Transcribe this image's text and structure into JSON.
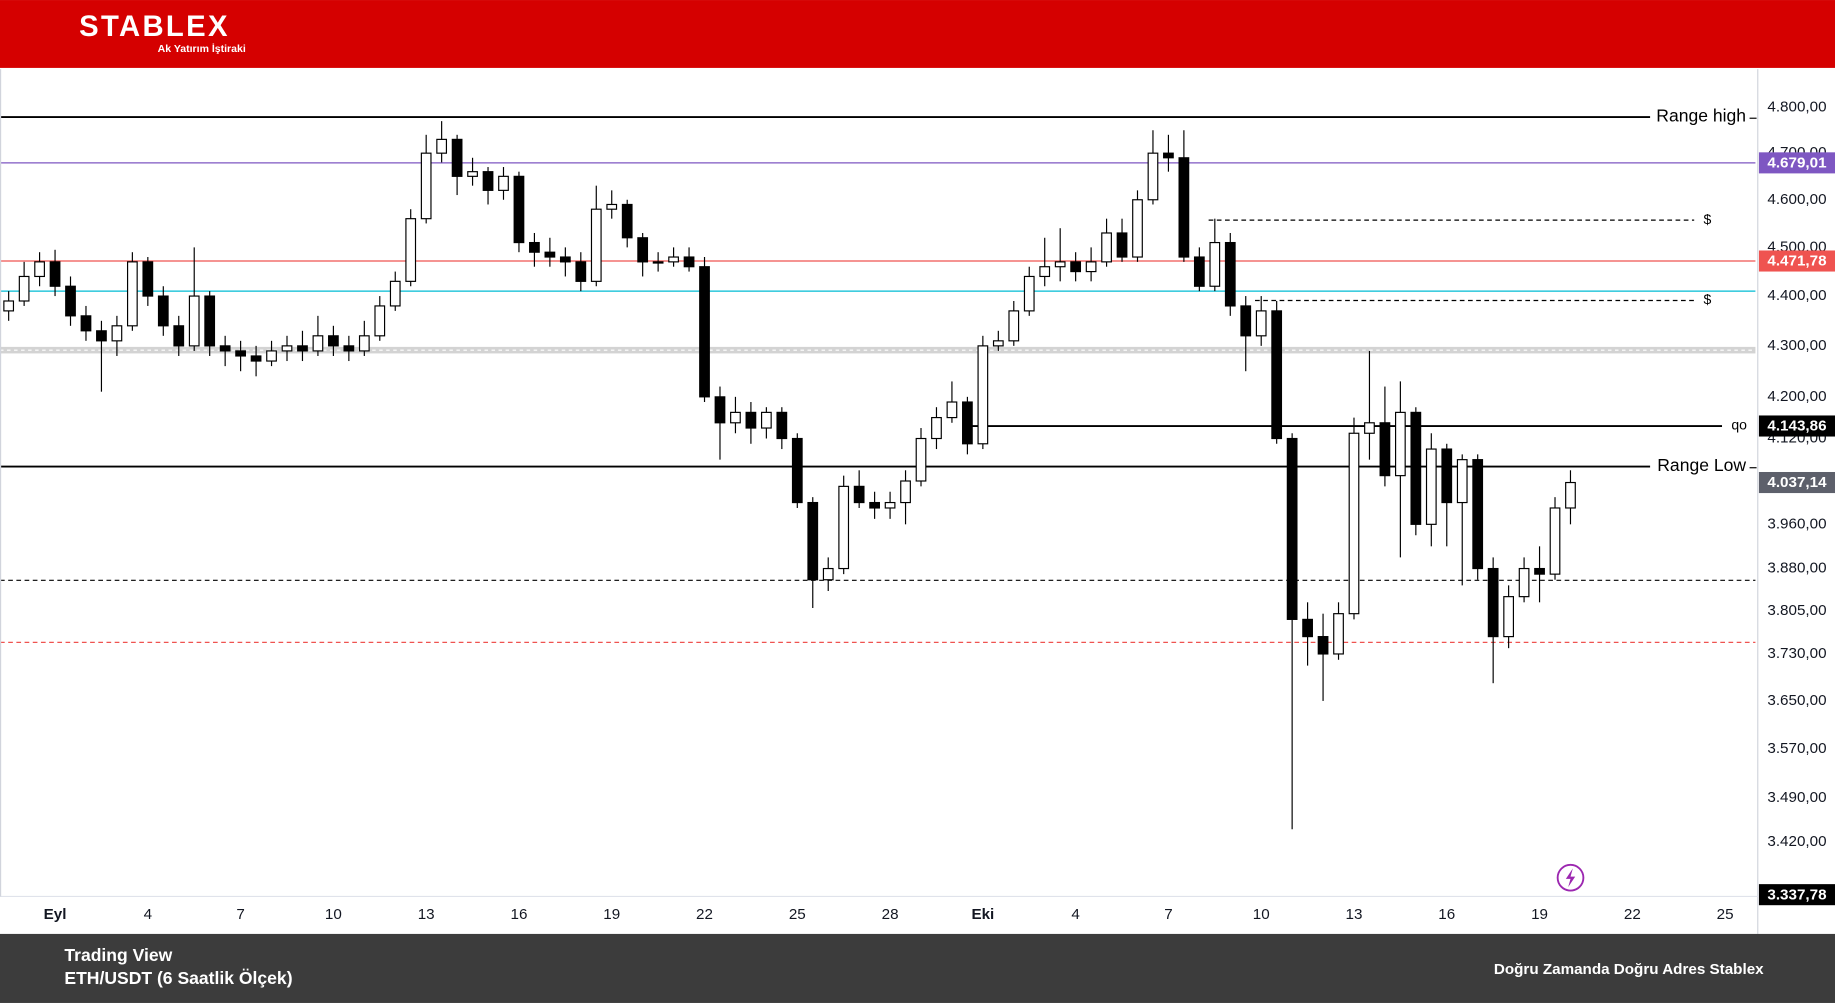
{
  "header": {
    "logo": "STABLEX",
    "tagline": "Ak Yatırım İştiraki"
  },
  "chart_data": {
    "type": "candlestick",
    "xlim": [
      -1.78,
      54.98
    ],
    "xticks": [
      {
        "value": 0,
        "label": "Eyl"
      },
      {
        "value": 3,
        "label": "4"
      },
      {
        "value": 6,
        "label": "7"
      },
      {
        "value": 9,
        "label": "10"
      },
      {
        "value": 12,
        "label": "13"
      },
      {
        "value": 15,
        "label": "16"
      },
      {
        "value": 18,
        "label": "19"
      },
      {
        "value": 21,
        "label": "22"
      },
      {
        "value": 24,
        "label": "25"
      },
      {
        "value": 27,
        "label": "28"
      },
      {
        "value": 30,
        "label": "Eki"
      },
      {
        "value": 33,
        "label": "4"
      },
      {
        "value": 36,
        "label": "7"
      },
      {
        "value": 39,
        "label": "10"
      },
      {
        "value": 42,
        "label": "13"
      },
      {
        "value": 45,
        "label": "16"
      },
      {
        "value": 48,
        "label": "19"
      },
      {
        "value": 51,
        "label": "22"
      },
      {
        "value": 54,
        "label": "25"
      }
    ],
    "ylim": [
      3335,
      4886
    ],
    "log_scale": true,
    "grid": false,
    "yticks": [
      {
        "value": 4800,
        "label": "4.800,00"
      },
      {
        "value": 4700,
        "label": "4.700,00"
      },
      {
        "value": 4600,
        "label": "4.600,00"
      },
      {
        "value": 4500,
        "label": "4.500,00"
      },
      {
        "value": 4400,
        "label": "4.400,00"
      },
      {
        "value": 4300,
        "label": "4.300,00"
      },
      {
        "value": 4200,
        "label": "4.200,00"
      },
      {
        "value": 4120,
        "label": "4.120,00"
      },
      {
        "value": 3960,
        "label": "3.960,00"
      },
      {
        "value": 3880,
        "label": "3.880,00"
      },
      {
        "value": 3805,
        "label": "3.805,00"
      },
      {
        "value": 3730,
        "label": "3.730,00"
      },
      {
        "value": 3650,
        "label": "3.650,00"
      },
      {
        "value": 3570,
        "label": "3.570,00"
      },
      {
        "value": 3490,
        "label": "3.490,00"
      },
      {
        "value": 3420,
        "label": "3.420,00"
      }
    ],
    "up_color": "#ffffff",
    "down_color": "#000000",
    "candles": [
      [
        -1.5,
        4370,
        4410,
        4350,
        4390
      ],
      [
        -1,
        4390,
        4470,
        4380,
        4440
      ],
      [
        -0.5,
        4440,
        4490,
        4420,
        4470
      ],
      [
        0,
        4470,
        4495,
        4400,
        4420
      ],
      [
        0.5,
        4420,
        4440,
        4340,
        4360
      ],
      [
        1,
        4360,
        4380,
        4310,
        4330
      ],
      [
        1.5,
        4330,
        4350,
        4210,
        4310
      ],
      [
        2,
        4310,
        4360,
        4280,
        4340
      ],
      [
        2.5,
        4340,
        4490,
        4330,
        4470
      ],
      [
        3,
        4470,
        4480,
        4380,
        4400
      ],
      [
        3.5,
        4400,
        4420,
        4320,
        4340
      ],
      [
        4,
        4340,
        4360,
        4280,
        4300
      ],
      [
        4.5,
        4300,
        4500,
        4290,
        4400
      ],
      [
        5,
        4400,
        4410,
        4280,
        4300
      ],
      [
        5.5,
        4300,
        4320,
        4260,
        4290
      ],
      [
        6,
        4290,
        4310,
        4250,
        4280
      ],
      [
        6.5,
        4280,
        4300,
        4240,
        4270
      ],
      [
        7,
        4270,
        4310,
        4260,
        4290
      ],
      [
        7.5,
        4290,
        4320,
        4270,
        4300
      ],
      [
        8,
        4300,
        4330,
        4270,
        4290
      ],
      [
        8.5,
        4290,
        4360,
        4280,
        4320
      ],
      [
        9,
        4320,
        4340,
        4280,
        4300
      ],
      [
        9.5,
        4300,
        4320,
        4270,
        4290
      ],
      [
        10,
        4290,
        4350,
        4280,
        4320
      ],
      [
        10.5,
        4320,
        4400,
        4310,
        4380
      ],
      [
        11,
        4380,
        4450,
        4370,
        4430
      ],
      [
        11.5,
        4430,
        4580,
        4420,
        4560
      ],
      [
        12,
        4560,
        4740,
        4550,
        4700
      ],
      [
        12.5,
        4700,
        4770,
        4680,
        4730
      ],
      [
        13,
        4730,
        4740,
        4610,
        4650
      ],
      [
        13.5,
        4650,
        4690,
        4630,
        4660
      ],
      [
        14,
        4660,
        4670,
        4590,
        4620
      ],
      [
        14.5,
        4620,
        4670,
        4600,
        4650
      ],
      [
        15,
        4650,
        4660,
        4490,
        4510
      ],
      [
        15.5,
        4510,
        4530,
        4460,
        4490
      ],
      [
        16,
        4490,
        4520,
        4460,
        4480
      ],
      [
        16.5,
        4480,
        4500,
        4440,
        4470
      ],
      [
        17,
        4470,
        4490,
        4410,
        4430
      ],
      [
        17.5,
        4430,
        4630,
        4420,
        4580
      ],
      [
        18,
        4580,
        4620,
        4560,
        4590
      ],
      [
        18.5,
        4590,
        4600,
        4500,
        4520
      ],
      [
        19,
        4520,
        4530,
        4440,
        4470
      ],
      [
        19.5,
        4470,
        4490,
        4450,
        4470
      ],
      [
        20,
        4470,
        4500,
        4460,
        4480
      ],
      [
        20.5,
        4480,
        4500,
        4450,
        4460
      ],
      [
        21,
        4460,
        4480,
        4190,
        4200
      ],
      [
        21.5,
        4200,
        4220,
        4080,
        4150
      ],
      [
        22,
        4150,
        4200,
        4130,
        4170
      ],
      [
        22.5,
        4170,
        4190,
        4110,
        4140
      ],
      [
        23,
        4140,
        4180,
        4120,
        4170
      ],
      [
        23.5,
        4170,
        4180,
        4100,
        4120
      ],
      [
        24,
        4120,
        4130,
        3990,
        4000
      ],
      [
        24.5,
        4000,
        4010,
        3810,
        3860
      ],
      [
        25,
        3860,
        3900,
        3840,
        3880
      ],
      [
        25.5,
        3880,
        4050,
        3870,
        4030
      ],
      [
        26,
        4030,
        4060,
        3990,
        4000
      ],
      [
        26.5,
        4000,
        4020,
        3970,
        3990
      ],
      [
        27,
        3990,
        4020,
        3970,
        4000
      ],
      [
        27.5,
        4000,
        4060,
        3960,
        4040
      ],
      [
        28,
        4040,
        4140,
        4030,
        4120
      ],
      [
        28.5,
        4120,
        4180,
        4100,
        4160
      ],
      [
        29,
        4160,
        4230,
        4150,
        4190
      ],
      [
        29.5,
        4190,
        4200,
        4090,
        4110
      ],
      [
        30,
        4110,
        4320,
        4100,
        4300
      ],
      [
        30.5,
        4300,
        4330,
        4290,
        4310
      ],
      [
        31,
        4310,
        4390,
        4300,
        4370
      ],
      [
        31.5,
        4370,
        4460,
        4360,
        4440
      ],
      [
        32,
        4440,
        4520,
        4420,
        4460
      ],
      [
        32.5,
        4460,
        4540,
        4430,
        4470
      ],
      [
        33,
        4470,
        4490,
        4430,
        4450
      ],
      [
        33.5,
        4450,
        4500,
        4430,
        4470
      ],
      [
        34,
        4470,
        4560,
        4460,
        4530
      ],
      [
        34.5,
        4530,
        4560,
        4470,
        4480
      ],
      [
        35,
        4480,
        4620,
        4470,
        4600
      ],
      [
        35.5,
        4600,
        4750,
        4590,
        4700
      ],
      [
        36,
        4700,
        4740,
        4660,
        4690
      ],
      [
        36.5,
        4690,
        4750,
        4470,
        4480
      ],
      [
        37,
        4480,
        4500,
        4410,
        4420
      ],
      [
        37.5,
        4420,
        4560,
        4410,
        4510
      ],
      [
        38,
        4510,
        4530,
        4360,
        4380
      ],
      [
        38.5,
        4380,
        4400,
        4250,
        4320
      ],
      [
        39,
        4320,
        4400,
        4300,
        4370
      ],
      [
        39.5,
        4370,
        4390,
        4110,
        4120
      ],
      [
        40,
        4120,
        4130,
        3440,
        3790
      ],
      [
        40.5,
        3790,
        3820,
        3710,
        3760
      ],
      [
        41,
        3760,
        3800,
        3650,
        3730
      ],
      [
        41.5,
        3730,
        3820,
        3720,
        3800
      ],
      [
        42,
        3800,
        4160,
        3790,
        4130
      ],
      [
        42.5,
        4130,
        4290,
        4080,
        4150
      ],
      [
        43,
        4150,
        4220,
        4030,
        4050
      ],
      [
        43.5,
        4050,
        4230,
        3900,
        4170
      ],
      [
        44,
        4170,
        4180,
        3940,
        3960
      ],
      [
        44.5,
        3960,
        4130,
        3920,
        4100
      ],
      [
        45,
        4100,
        4110,
        3920,
        4000
      ],
      [
        45.5,
        4000,
        4090,
        3850,
        4080
      ],
      [
        46,
        4080,
        4090,
        3860,
        3880
      ],
      [
        46.5,
        3880,
        3900,
        3680,
        3760
      ],
      [
        47,
        3760,
        3850,
        3740,
        3830
      ],
      [
        47.5,
        3830,
        3900,
        3820,
        3880
      ],
      [
        48,
        3880,
        3920,
        3820,
        3870
      ],
      [
        48.5,
        3870,
        4010,
        3860,
        3990
      ],
      [
        49,
        3990,
        4060,
        3960,
        4037.14
      ]
    ],
    "lines": [
      {
        "name": "Range high",
        "value": 4779,
        "color": "#000000",
        "style": "solid"
      },
      {
        "value": 4679.01,
        "value_label": "4.679,01",
        "color": "#7e57c2",
        "style": "solid"
      },
      {
        "value": 4471.78,
        "value_label": "4.471,78",
        "color": "#ef5350",
        "style": "solid"
      },
      {
        "value": 4410,
        "color": "#00bcd4",
        "style": "solid"
      },
      {
        "values": [
          4285,
          4298
        ],
        "color": "#9e9e9e",
        "style": "band"
      },
      {
        "name": "$",
        "value": 4557,
        "start": 37.3,
        "end": 53.0,
        "color": "#000000",
        "style": "dashed"
      },
      {
        "name": "$",
        "value": 4391,
        "start": 38.8,
        "end": 53.0,
        "color": "#000000",
        "style": "dashed"
      },
      {
        "name": "qo",
        "value": 4143.86,
        "value_label": "4.143,86",
        "start": 29.6,
        "end": 53.9,
        "color": "#000000",
        "style": "solid"
      },
      {
        "name": "Range Low",
        "value": 4067,
        "color": "#000000",
        "style": "solid"
      },
      {
        "value": 3859,
        "color": "#000000",
        "style": "dashed"
      },
      {
        "value": 3750,
        "color": "#ef5350",
        "style": "dashed"
      }
    ],
    "price_labels": [
      {
        "value": 4037.14,
        "label": "4.037,14",
        "color": "#5d606b"
      },
      {
        "value": 3337.78,
        "label": "3.337,78",
        "color": "#000000"
      }
    ]
  },
  "footer": {
    "source": "Trading View",
    "instrument": "ETH/USDT (6 Saatlik Ölçek)",
    "slogan": "Doğru Zamanda Doğru Adres Stablex"
  }
}
